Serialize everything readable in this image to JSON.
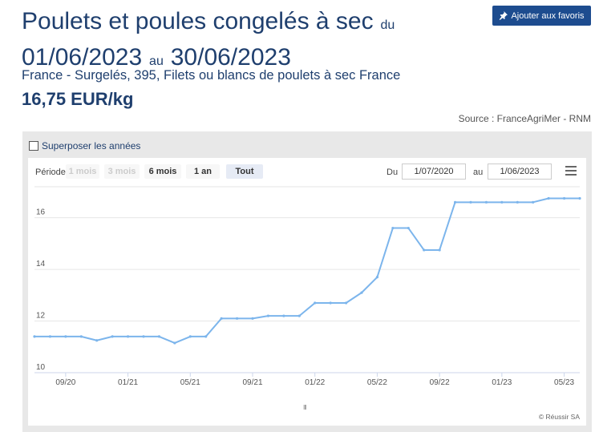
{
  "header": {
    "title_main": "Poulets et poules congelés à sec",
    "du_label": "du",
    "date_from": "01/06/2023",
    "au_label": "au",
    "date_to": "30/06/2023",
    "favorite_button": "Ajouter aux favoris",
    "subtitle": "France - Surgelés, 395, Filets ou blancs de poulets à sec France",
    "price": "16,75 EUR/kg",
    "source": "Source : FranceAgriMer - RNM"
  },
  "controls": {
    "overlay_years": "Superposer les années",
    "period_label": "Période",
    "zoom_buttons": [
      {
        "label": "1 mois",
        "state": "disabled"
      },
      {
        "label": "3 mois",
        "state": "disabled"
      },
      {
        "label": "6 mois",
        "state": "normal"
      },
      {
        "label": "1 an",
        "state": "normal"
      },
      {
        "label": "Tout",
        "state": "selected"
      }
    ],
    "from_label": "Du",
    "from_value": "1/07/2020",
    "to_label": "au",
    "to_value": "1/06/2023",
    "menu_icon": "hamburger-menu-icon",
    "pin_icon": "pushpin-icon"
  },
  "credit": "© Réussir SA",
  "navigator_mark": "III",
  "colors": {
    "title": "#1f3f6e",
    "button": "#1d4c8f",
    "series": "#7cb5ec",
    "grid": "#e6e6e6"
  },
  "chart_data": {
    "type": "line",
    "grid": true,
    "legend": "none",
    "ylim": [
      10,
      17.2
    ],
    "yticks": [
      10,
      12,
      14,
      16
    ],
    "x_tick_labels": [
      "09/20",
      "01/21",
      "05/21",
      "09/21",
      "01/22",
      "05/22",
      "09/22",
      "01/23",
      "05/23"
    ],
    "x_tick_months": [
      "2020-09",
      "2021-01",
      "2021-05",
      "2021-09",
      "2022-01",
      "2022-05",
      "2022-09",
      "2023-01",
      "2023-05"
    ],
    "series": [
      {
        "x": [
          "2020-07",
          "2020-08",
          "2020-09",
          "2020-10",
          "2020-11",
          "2020-12",
          "2021-01",
          "2021-02",
          "2021-03",
          "2021-04",
          "2021-05",
          "2021-06",
          "2021-07",
          "2021-08",
          "2021-09",
          "2021-10",
          "2021-11",
          "2021-12",
          "2022-01",
          "2022-02",
          "2022-03",
          "2022-04",
          "2022-05",
          "2022-06",
          "2022-07",
          "2022-08",
          "2022-09",
          "2022-10",
          "2022-11",
          "2022-12",
          "2023-01",
          "2023-02",
          "2023-03",
          "2023-04",
          "2023-05",
          "2023-06"
        ],
        "values": [
          11.4,
          11.4,
          11.4,
          11.4,
          11.25,
          11.4,
          11.4,
          11.4,
          11.4,
          11.15,
          11.4,
          11.4,
          12.1,
          12.1,
          12.1,
          12.2,
          12.2,
          12.2,
          12.7,
          12.7,
          12.7,
          13.1,
          13.7,
          15.6,
          15.6,
          14.75,
          14.75,
          16.6,
          16.6,
          16.6,
          16.6,
          16.6,
          16.6,
          16.75,
          16.75,
          16.75
        ]
      }
    ]
  }
}
